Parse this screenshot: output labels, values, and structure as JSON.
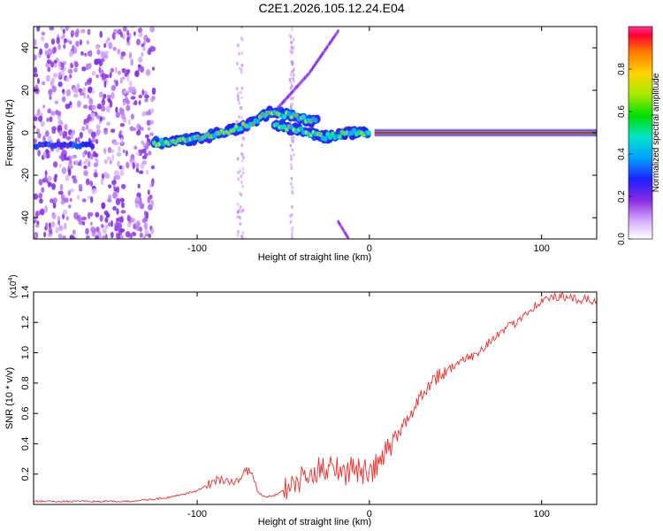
{
  "title": "C2E1.2026.105.12.24.E04",
  "chart_data": [
    {
      "type": "heatmap",
      "xlabel": "Height of straight line (km)",
      "ylabel": "Frequency (Hz)",
      "xlim": [
        -195,
        132
      ],
      "ylim": [
        -50,
        50
      ],
      "xticks": [
        -100,
        0,
        100
      ],
      "xtick_labels": [
        "-100",
        "0",
        "100"
      ],
      "yticks": [
        40,
        20,
        0,
        -20,
        -40
      ],
      "ytick_labels": [
        "40",
        "20",
        "0",
        "-20",
        "-40"
      ],
      "colorbar": {
        "label": "Normalized spectral amplitude",
        "range": [
          0,
          1
        ],
        "ticks": [
          0.0,
          0.2,
          0.4,
          0.6,
          0.8
        ],
        "tick_labels": [
          "0.0",
          "0.2",
          "0.4",
          "0.6",
          "0.8"
        ]
      },
      "features": [
        {
          "name": "steady-line",
          "x_start": 3,
          "x_end": 132,
          "freq": 0,
          "amplitude": 1.0
        },
        {
          "name": "main-trace",
          "points": [
            [
              -125,
              -5
            ],
            [
              -100,
              -3
            ],
            [
              -85,
              0
            ],
            [
              -70,
              4
            ],
            [
              -57,
              10
            ],
            [
              -45,
              8
            ],
            [
              -30,
              5
            ]
          ],
          "amplitude": 0.6
        },
        {
          "name": "lower-trace",
          "points": [
            [
              -55,
              4
            ],
            [
              -40,
              1
            ],
            [
              -25,
              -2
            ],
            [
              -10,
              0
            ],
            [
              0,
              0
            ]
          ],
          "amplitude": 0.55
        },
        {
          "name": "left-band",
          "x_start": -195,
          "x_end": -160,
          "freq": -6,
          "amplitude": 0.3
        },
        {
          "name": "upper-arc",
          "points": [
            [
              -55,
              10
            ],
            [
              -35,
              28
            ],
            [
              -18,
              48
            ]
          ],
          "amplitude": 0.15
        },
        {
          "name": "lower-arc",
          "points": [
            [
              -18,
              -42
            ],
            [
              -12,
              -50
            ]
          ],
          "amplitude": 0.15
        },
        {
          "name": "noise-region",
          "x_start": -195,
          "x_end": -125,
          "amplitude": 0.2
        }
      ]
    },
    {
      "type": "line",
      "xlabel": "Height of straight line (km)",
      "ylabel": "SNR (10 * v/v)",
      "y_multiplier": "(x10",
      "y_exponent": "4",
      "xlim": [
        -195,
        132
      ],
      "ylim": [
        0,
        1.4
      ],
      "xticks": [
        -100,
        0,
        100
      ],
      "xtick_labels": [
        "-100",
        "0",
        "100"
      ],
      "yticks": [
        0.2,
        0.4,
        0.6,
        0.8,
        1.0,
        1.2,
        1.4
      ],
      "ytick_labels": [
        "0.2",
        "0.4",
        "0.6",
        "0.8",
        "1.0",
        "1.2",
        "1.4"
      ],
      "color": "#e8312d",
      "series": [
        {
          "name": "SNR",
          "x": [
            -195,
            -180,
            -160,
            -140,
            -130,
            -120,
            -110,
            -100,
            -92,
            -88,
            -84,
            -80,
            -76,
            -72,
            -68,
            -65,
            -60,
            -55,
            -50,
            -45,
            -40,
            -35,
            -30,
            -25,
            -20,
            -15,
            -10,
            -5,
            0,
            5,
            10,
            15,
            20,
            25,
            30,
            35,
            40,
            45,
            50,
            55,
            60,
            65,
            70,
            75,
            80,
            85,
            90,
            95,
            100,
            105,
            110,
            115,
            120,
            125,
            132
          ],
          "y": [
            0.02,
            0.02,
            0.02,
            0.02,
            0.03,
            0.04,
            0.06,
            0.09,
            0.14,
            0.17,
            0.16,
            0.14,
            0.16,
            0.22,
            0.2,
            0.08,
            0.05,
            0.06,
            0.09,
            0.12,
            0.16,
            0.18,
            0.22,
            0.25,
            0.27,
            0.2,
            0.24,
            0.22,
            0.2,
            0.26,
            0.35,
            0.44,
            0.52,
            0.62,
            0.72,
            0.8,
            0.85,
            0.88,
            0.92,
            0.95,
            0.98,
            1.02,
            1.08,
            1.12,
            1.16,
            1.2,
            1.26,
            1.3,
            1.34,
            1.36,
            1.37,
            1.36,
            1.35,
            1.35,
            1.34
          ]
        }
      ]
    }
  ]
}
